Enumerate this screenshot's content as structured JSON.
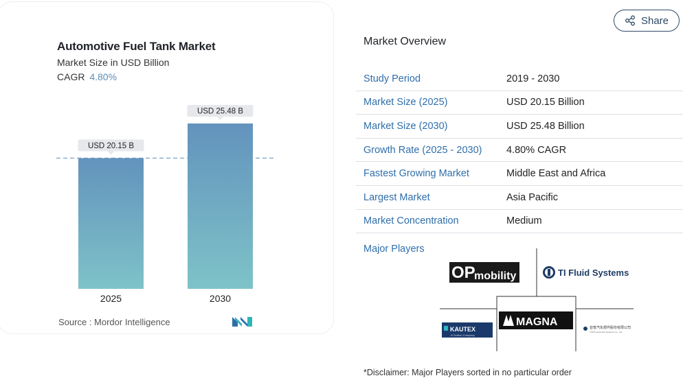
{
  "chart_card": {
    "title": "Automotive Fuel Tank Market",
    "subtitle": "Market Size in USD Billion",
    "cagr_label": "CAGR",
    "cagr_value": "4.80%",
    "source": "Source :  Mordor Intelligence",
    "logo_icon": "mordor-intelligence-logo-icon"
  },
  "chart_data": {
    "type": "bar",
    "title": "Automotive Fuel Tank Market",
    "subtitle": "Market Size in USD Billion",
    "categories": [
      "2025",
      "2030"
    ],
    "values": [
      20.15,
      25.48
    ],
    "data_labels": [
      "USD 20.15 B",
      "USD 25.48 B"
    ],
    "reference_line": 20.15,
    "xlabel": "",
    "ylabel": "",
    "ylim": [
      0,
      25.48
    ],
    "grid": false,
    "bar_gradient": [
      "#6393bd",
      "#7ec3c8"
    ],
    "reference_line_color": "#6e9bc0"
  },
  "share": {
    "label": "Share",
    "icon": "share-icon"
  },
  "overview": {
    "title": "Market Overview",
    "rows": [
      {
        "key": "Study Period",
        "value": "2019 - 2030"
      },
      {
        "key": "Market Size (2025)",
        "value": "USD 20.15 Billion"
      },
      {
        "key": "Market Size (2030)",
        "value": "USD 25.48 Billion"
      },
      {
        "key": "Growth Rate (2025 - 2030)",
        "value": "4.80% CAGR"
      },
      {
        "key": "Fastest Growing Market",
        "value": "Middle East and Africa"
      },
      {
        "key": "Largest Market",
        "value": "Asia Pacific"
      },
      {
        "key": "Market Concentration",
        "value": "Medium"
      }
    ],
    "major_players_label": "Major Players",
    "players": {
      "opmobility_op": "OP",
      "opmobility_word": "mobility",
      "ti_fluid": "TI Fluid Systems",
      "kautex": "KAUTEX",
      "kautex_sub": "A Textron Company",
      "magna": "MAGNA",
      "yapp": "亚普汽车部件股份有限公司",
      "yapp_sub": "YAPP Automotive Systems Co., Ltd."
    },
    "disclaimer": "*Disclaimer: Major Players sorted in no particular order"
  },
  "colors": {
    "accent_blue": "#2f6eab",
    "cagr_blue": "#5d8db8"
  }
}
